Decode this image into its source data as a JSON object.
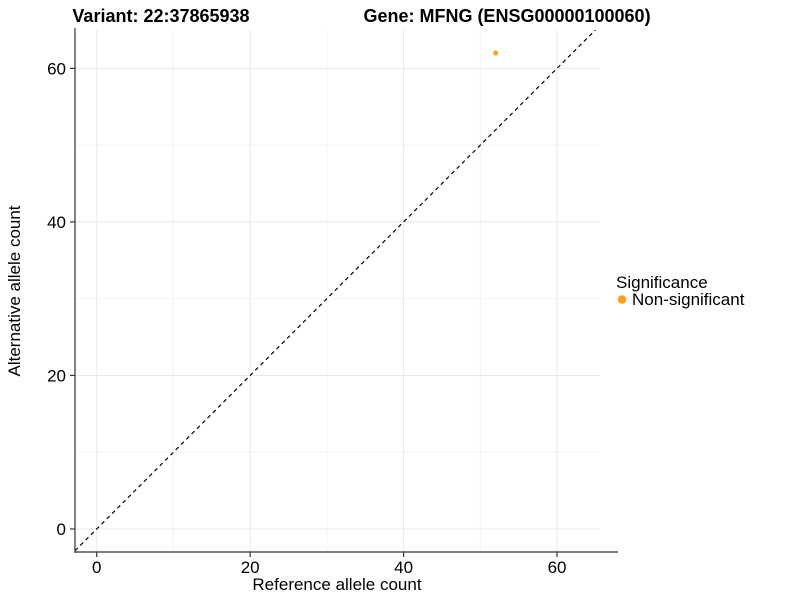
{
  "titles": {
    "variant": "Variant: 22:37865938",
    "gene": "Gene: MFNG (ENSG00000100060)"
  },
  "chart_data": {
    "type": "scatter",
    "xlabel": "Reference allele count",
    "ylabel": "Alternative allele count",
    "xlim": [
      -2.83,
      65.6
    ],
    "ylim": [
      -3.0,
      65.0
    ],
    "xticks": [
      0,
      20,
      40,
      60
    ],
    "yticks": [
      0,
      20,
      40,
      60
    ],
    "xminor": [
      10,
      30,
      50
    ],
    "yminor": [
      10,
      30,
      50
    ],
    "grid": true,
    "points": [
      {
        "x": 52,
        "y": 62,
        "series": "Non-significant",
        "color": "#F9A11B"
      }
    ],
    "reference_line": {
      "type": "identity",
      "slope": 1,
      "intercept": 0,
      "dashed": true,
      "color": "#000000"
    },
    "legend_position": "right"
  },
  "legend": {
    "title": "Significance",
    "items": [
      {
        "label": "Non-significant",
        "color": "#F9A11B"
      }
    ]
  },
  "colors": {
    "background": "#FFFFFF",
    "point": "#F9A11B",
    "grid_major": "#E8E8E8",
    "grid_minor": "#F4F4F4",
    "axis_line": "#333333",
    "text": "#000000"
  }
}
